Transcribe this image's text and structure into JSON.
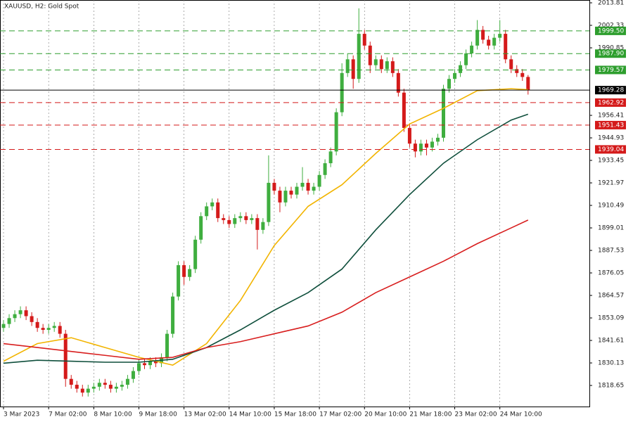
{
  "chart_data": {
    "type": "candlestick",
    "title": "XAUUSD, H2:  Gold Spot",
    "up_color": "#3fae3f",
    "down_color": "#d41a1a",
    "open": [
      1848,
      1850,
      1853,
      1855,
      1857,
      1854,
      1851,
      1848,
      1847,
      1848,
      1849,
      1845,
      1822,
      1819,
      1817,
      1815,
      1817,
      1818,
      1820,
      1819,
      1817,
      1818,
      1819,
      1822,
      1826,
      1830,
      1829,
      1831,
      1830,
      1833,
      1845,
      1864,
      1880,
      1874,
      1878,
      1893,
      1905,
      1910,
      1912,
      1904,
      1903,
      1901,
      1904,
      1905,
      1903,
      1904,
      1898,
      1902,
      1922,
      1918,
      1912,
      1918,
      1916,
      1920,
      1922,
      1918,
      1920,
      1926,
      1932,
      1938,
      1958,
      1978,
      1985,
      1975,
      1998,
      1992,
      1982,
      1985,
      1980,
      1984,
      1978,
      1968,
      1950,
      1942,
      1938,
      1942,
      1940,
      1943,
      1945,
      1970,
      1975,
      1978,
      1982,
      1988,
      1992,
      2000,
      1995,
      1992,
      1996,
      1998,
      1985,
      1980,
      1978,
      1976
    ],
    "high": [
      1852,
      1855,
      1857,
      1859,
      1859,
      1856,
      1853,
      1850,
      1850,
      1851,
      1851,
      1847,
      1824,
      1821,
      1819,
      1819,
      1820,
      1822,
      1822,
      1821,
      1820,
      1821,
      1824,
      1828,
      1832,
      1832,
      1833,
      1833,
      1835,
      1847,
      1866,
      1882,
      1882,
      1880,
      1895,
      1907,
      1912,
      1914,
      1914,
      1906,
      1905,
      1906,
      1907,
      1907,
      1906,
      1906,
      1904,
      1936,
      1924,
      1920,
      1920,
      1920,
      1922,
      1930,
      1924,
      1922,
      1928,
      1934,
      1940,
      1960,
      1983,
      1988,
      1987,
      2011,
      2000,
      1994,
      1987,
      1987,
      1986,
      1986,
      1980,
      1970,
      1952,
      1944,
      1944,
      1944,
      1945,
      1947,
      1972,
      1977,
      1980,
      1984,
      1990,
      1994,
      2005,
      2002,
      1997,
      1998,
      2005,
      2000,
      1987,
      1982,
      1980,
      1977
    ],
    "low": [
      1846,
      1848,
      1851,
      1853,
      1852,
      1849,
      1846,
      1845,
      1845,
      1846,
      1843,
      1818,
      1817,
      1815,
      1813,
      1813,
      1815,
      1816,
      1817,
      1815,
      1815,
      1816,
      1817,
      1820,
      1824,
      1827,
      1827,
      1828,
      1828,
      1831,
      1843,
      1862,
      1870,
      1872,
      1876,
      1891,
      1903,
      1908,
      1902,
      1901,
      1899,
      1899,
      1902,
      1901,
      1901,
      1888,
      1896,
      1900,
      1916,
      1907,
      1910,
      1914,
      1914,
      1918,
      1916,
      1916,
      1918,
      1924,
      1930,
      1936,
      1956,
      1976,
      1970,
      1973,
      1990,
      1978,
      1980,
      1978,
      1978,
      1976,
      1966,
      1948,
      1940,
      1935,
      1936,
      1936,
      1938,
      1941,
      1943,
      1968,
      1973,
      1976,
      1980,
      1986,
      1990,
      1993,
      1990,
      1990,
      1994,
      1983,
      1978,
      1976,
      1974,
      1967
    ],
    "close": [
      1850,
      1853,
      1855,
      1857,
      1854,
      1851,
      1848,
      1847,
      1848,
      1849,
      1845,
      1822,
      1819,
      1817,
      1815,
      1817,
      1818,
      1820,
      1819,
      1817,
      1818,
      1819,
      1822,
      1826,
      1830,
      1829,
      1831,
      1830,
      1833,
      1845,
      1864,
      1880,
      1874,
      1878,
      1893,
      1905,
      1910,
      1912,
      1904,
      1903,
      1901,
      1904,
      1905,
      1903,
      1904,
      1898,
      1902,
      1922,
      1918,
      1912,
      1918,
      1916,
      1920,
      1922,
      1918,
      1920,
      1926,
      1932,
      1938,
      1958,
      1978,
      1985,
      1975,
      1998,
      1992,
      1982,
      1985,
      1980,
      1984,
      1978,
      1968,
      1950,
      1942,
      1938,
      1942,
      1940,
      1943,
      1945,
      1970,
      1975,
      1978,
      1982,
      1988,
      1992,
      2000,
      1995,
      1992,
      1996,
      1998,
      1985,
      1980,
      1978,
      1976,
      1969.28
    ],
    "overlays": [
      {
        "color": "#f2b400",
        "x": [
          0,
          6,
          12,
          18,
          24,
          30,
          36,
          42,
          48,
          54,
          60,
          66,
          72,
          78,
          84,
          90,
          93
        ],
        "values": [
          1831,
          1840,
          1843,
          1838,
          1833,
          1829,
          1840,
          1862,
          1890,
          1910,
          1921,
          1937,
          1952,
          1960,
          1969,
          1970,
          1969.5
        ]
      },
      {
        "color": "#0f4f3c",
        "x": [
          0,
          6,
          12,
          18,
          24,
          30,
          36,
          42,
          48,
          54,
          60,
          66,
          72,
          78,
          84,
          90,
          93
        ],
        "values": [
          1830,
          1831.5,
          1831,
          1830.5,
          1830.5,
          1832,
          1838,
          1847,
          1857,
          1866,
          1878,
          1898,
          1916,
          1932,
          1944,
          1954,
          1957
        ]
      },
      {
        "color": "#d81e1e",
        "x": [
          0,
          6,
          12,
          18,
          24,
          30,
          36,
          42,
          48,
          54,
          60,
          66,
          72,
          78,
          84,
          90,
          93
        ],
        "values": [
          1840,
          1838,
          1836,
          1834,
          1832,
          1833,
          1838,
          1841,
          1845,
          1849,
          1856,
          1866,
          1874,
          1882,
          1891,
          1899,
          1903
        ]
      }
    ],
    "levels": [
      {
        "value": 1999.5,
        "label": "1999.50",
        "color": "#2e9e2e",
        "style": "dashed"
      },
      {
        "value": 1987.9,
        "label": "1987.90",
        "color": "#2e9e2e",
        "style": "dashed"
      },
      {
        "value": 1979.57,
        "label": "1979.57",
        "color": "#2e9e2e",
        "style": "dashed"
      },
      {
        "value": 1969.28,
        "label": "1969.28",
        "color": "#000000",
        "style": "solid"
      },
      {
        "value": 1962.92,
        "label": "1962.92",
        "color": "#d41a1a",
        "style": "dashed"
      },
      {
        "value": 1951.43,
        "label": "1951.43",
        "color": "#d41a1a",
        "style": "dashed"
      },
      {
        "value": 1939.04,
        "label": "1939.04",
        "color": "#d41a1a",
        "style": "dashed"
      }
    ],
    "xlim": [
      -0.625,
      103.875
    ],
    "xticks": [
      {
        "value": 0,
        "label": "3 Mar 2023"
      },
      {
        "value": 8,
        "label": "7 Mar 02:00"
      },
      {
        "value": 16,
        "label": "8 Mar 10:00"
      },
      {
        "value": 24,
        "label": "9 Mar 18:00"
      },
      {
        "value": 32,
        "label": "13 Mar 02:00"
      },
      {
        "value": 40,
        "label": "14 Mar 10:00"
      },
      {
        "value": 48,
        "label": "15 Mar 18:00"
      },
      {
        "value": 56,
        "label": "17 Mar 02:00"
      },
      {
        "value": 64,
        "label": "20 Mar 10:00"
      },
      {
        "value": 72,
        "label": "21 Mar 18:00"
      },
      {
        "value": 80,
        "label": "23 Mar 02:00"
      },
      {
        "value": 88,
        "label": "24 Mar 10:00"
      }
    ],
    "ylim": [
      1807.9,
      2015.25
    ],
    "yticks": [
      2013.81,
      2002.33,
      1990.85,
      1956.41,
      1944.93,
      1933.45,
      1921.97,
      1910.49,
      1899.01,
      1887.53,
      1876.05,
      1864.57,
      1853.09,
      1841.61,
      1830.13,
      1818.65
    ],
    "grid": true
  }
}
